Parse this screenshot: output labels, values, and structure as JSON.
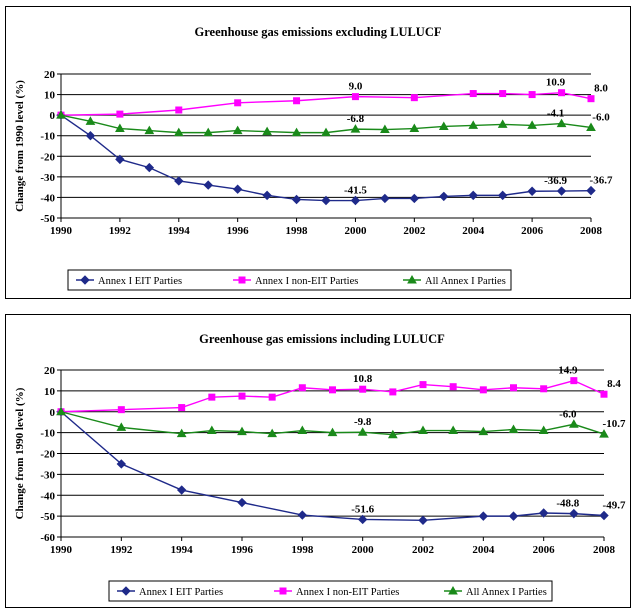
{
  "chart_data": [
    {
      "type": "line",
      "title": "Greenhouse gas emissions excluding LULUCF",
      "xlabel": "",
      "ylabel": "Change from 1990 level (%)",
      "ylim": [
        -50,
        20
      ],
      "yticks": [
        20,
        10,
        0,
        -10,
        -20,
        -30,
        -40,
        -50
      ],
      "xticks": [
        1990,
        1992,
        1994,
        1996,
        1998,
        2000,
        2002,
        2004,
        2006,
        2008
      ],
      "grid": true,
      "legend": "bottom",
      "series": [
        {
          "name": "Annex I EIT Parties",
          "color": "#1f2a8a",
          "marker": "diamond",
          "x": [
            1990,
            1991,
            1992,
            1993,
            1994,
            1995,
            1996,
            1997,
            1998,
            1999,
            2000,
            2001,
            2002,
            2003,
            2004,
            2005,
            2006,
            2007,
            2008
          ],
          "values": [
            0,
            -10,
            -21.5,
            -25.5,
            -32,
            -34,
            -36,
            -39,
            -41,
            -41.5,
            -41.5,
            -40.5,
            -40.5,
            -39.5,
            -39,
            -39,
            -37,
            -36.9,
            -36.7
          ]
        },
        {
          "name": "Annex I non-EIT Parties",
          "color": "#ff00ff",
          "marker": "square",
          "x": [
            1990,
            1992,
            1994,
            1996,
            1998,
            2000,
            2002,
            2004,
            2005,
            2006,
            2007,
            2008
          ],
          "values": [
            0,
            0.5,
            2.5,
            6,
            7,
            9,
            8.5,
            10.5,
            10.5,
            10,
            10.9,
            8
          ]
        },
        {
          "name": "All Annex I Parties",
          "color": "#1a8a1a",
          "marker": "triangle",
          "x": [
            1990,
            1991,
            1992,
            1993,
            1994,
            1995,
            1996,
            1997,
            1998,
            1999,
            2000,
            2001,
            2002,
            2003,
            2004,
            2005,
            2006,
            2007,
            2008
          ],
          "values": [
            0,
            -3,
            -6.5,
            -7.5,
            -8.5,
            -8.5,
            -7.5,
            -8,
            -8.5,
            -8.5,
            -6.8,
            -7,
            -6.5,
            -5.5,
            -5,
            -4.5,
            -5,
            -4.1,
            -6
          ]
        }
      ],
      "annotations": [
        {
          "text": "9.0",
          "x": 2000,
          "y": 9,
          "series": 1
        },
        {
          "text": "10.9",
          "x": 2007,
          "y": 10.9,
          "series": 1
        },
        {
          "text": "8.0",
          "x": 2008,
          "y": 8,
          "series": 1
        },
        {
          "text": "-6.8",
          "x": 2000,
          "y": -6.8,
          "series": 2
        },
        {
          "text": "-4.1",
          "x": 2007,
          "y": -4.1,
          "series": 2
        },
        {
          "text": "-6.0",
          "x": 2008,
          "y": -6,
          "series": 2
        },
        {
          "text": "-41.5",
          "x": 2000,
          "y": -41.5,
          "series": 0
        },
        {
          "text": "-36.9",
          "x": 2007,
          "y": -36.9,
          "series": 0
        },
        {
          "text": "-36.7",
          "x": 2008,
          "y": -36.7,
          "series": 0
        }
      ]
    },
    {
      "type": "line",
      "title": "Greenhouse gas emissions including LULUCF",
      "xlabel": "",
      "ylabel": "Change from 1990 level (%)",
      "ylim": [
        -60,
        20
      ],
      "yticks": [
        20,
        10,
        0,
        -10,
        -20,
        -30,
        -40,
        -50,
        -60
      ],
      "xticks": [
        1990,
        1992,
        1994,
        1996,
        1998,
        2000,
        2002,
        2004,
        2006,
        2008
      ],
      "grid": true,
      "legend": "bottom",
      "series": [
        {
          "name": "Annex I EIT Parties",
          "color": "#1f2a8a",
          "marker": "diamond",
          "x": [
            1990,
            1992,
            1994,
            1996,
            1998,
            2000,
            2002,
            2004,
            2005,
            2006,
            2007,
            2008
          ],
          "values": [
            0,
            -25,
            -37.5,
            -43.5,
            -49.5,
            -51.6,
            -52,
            -50,
            -50,
            -48.5,
            -48.8,
            -49.7
          ]
        },
        {
          "name": "Annex I non-EIT Parties",
          "color": "#ff00ff",
          "marker": "square",
          "x": [
            1990,
            1992,
            1994,
            1995,
            1996,
            1997,
            1998,
            1999,
            2000,
            2001,
            2002,
            2003,
            2004,
            2005,
            2006,
            2007,
            2008
          ],
          "values": [
            0,
            1,
            2,
            7,
            7.5,
            7,
            11.5,
            10.5,
            10.8,
            9.5,
            13,
            12,
            10.5,
            11.5,
            11,
            14.9,
            8.4
          ]
        },
        {
          "name": "All Annex I Parties",
          "color": "#1a8a1a",
          "marker": "triangle",
          "x": [
            1990,
            1992,
            1994,
            1995,
            1996,
            1997,
            1998,
            1999,
            2000,
            2001,
            2002,
            2003,
            2004,
            2005,
            2006,
            2007,
            2008
          ],
          "values": [
            0,
            -7.5,
            -10.5,
            -9,
            -9.5,
            -10.5,
            -9,
            -10,
            -9.8,
            -11,
            -9,
            -9,
            -9.5,
            -8.5,
            -9,
            -6,
            -10.7
          ]
        }
      ],
      "annotations": [
        {
          "text": "10.8",
          "x": 2000,
          "y": 10.8,
          "series": 1
        },
        {
          "text": "14.9",
          "x": 2007,
          "y": 14.9,
          "series": 1
        },
        {
          "text": "8.4",
          "x": 2008,
          "y": 8.4,
          "series": 1
        },
        {
          "text": "-9.8",
          "x": 2000,
          "y": -9.8,
          "series": 2
        },
        {
          "text": "-6.0",
          "x": 2007,
          "y": -6,
          "series": 2
        },
        {
          "text": "-10.7",
          "x": 2008,
          "y": -10.7,
          "series": 2
        },
        {
          "text": "-51.6",
          "x": 2000,
          "y": -51.6,
          "series": 0
        },
        {
          "text": "-48.8",
          "x": 2007,
          "y": -48.8,
          "series": 0
        },
        {
          "text": "-49.7",
          "x": 2008,
          "y": -49.7,
          "series": 0
        }
      ]
    }
  ]
}
